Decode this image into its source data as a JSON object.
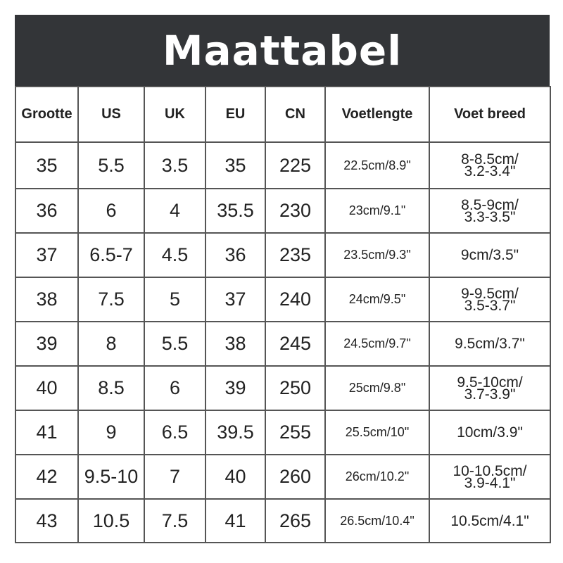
{
  "title": "Maattabel",
  "table": {
    "headers": [
      "Grootte",
      "US",
      "UK",
      "EU",
      "CN",
      "Voetlengte",
      "Voet breed"
    ],
    "rows": [
      {
        "size": "35",
        "us": "5.5",
        "uk": "3.5",
        "eu": "35",
        "cn": "225",
        "length": "22.5cm/8.9\"",
        "width_line1": "8-8.5cm/",
        "width_line2": "3.2-3.4\""
      },
      {
        "size": "36",
        "us": "6",
        "uk": "4",
        "eu": "35.5",
        "cn": "230",
        "length": "23cm/9.1\"",
        "width_line1": "8.5-9cm/",
        "width_line2": "3.3-3.5\""
      },
      {
        "size": "37",
        "us": "6.5-7",
        "uk": "4.5",
        "eu": "36",
        "cn": "235",
        "length": "23.5cm/9.3\"",
        "width_line1": "9cm/3.5\"",
        "width_line2": ""
      },
      {
        "size": "38",
        "us": "7.5",
        "uk": "5",
        "eu": "37",
        "cn": "240",
        "length": "24cm/9.5\"",
        "width_line1": "9-9.5cm/",
        "width_line2": "3.5-3.7\""
      },
      {
        "size": "39",
        "us": "8",
        "uk": "5.5",
        "eu": "38",
        "cn": "245",
        "length": "24.5cm/9.7\"",
        "width_line1": "9.5cm/3.7\"",
        "width_line2": ""
      },
      {
        "size": "40",
        "us": "8.5",
        "uk": "6",
        "eu": "39",
        "cn": "250",
        "length": "25cm/9.8\"",
        "width_line1": "9.5-10cm/",
        "width_line2": "3.7-3.9\""
      },
      {
        "size": "41",
        "us": "9",
        "uk": "6.5",
        "eu": "39.5",
        "cn": "255",
        "length": "25.5cm/10\"",
        "width_line1": "10cm/3.9\"",
        "width_line2": ""
      },
      {
        "size": "42",
        "us": "9.5-10",
        "uk": "7",
        "eu": "40",
        "cn": "260",
        "length": "26cm/10.2\"",
        "width_line1": "10-10.5cm/",
        "width_line2": "3.9-4.1\""
      },
      {
        "size": "43",
        "us": "10.5",
        "uk": "7.5",
        "eu": "41",
        "cn": "265",
        "length": "26.5cm/10.4\"",
        "width_line1": "10.5cm/4.1\"",
        "width_line2": ""
      }
    ]
  },
  "colors": {
    "header_bg": "#333538",
    "title_text": "#ffffff",
    "grid": "#555555",
    "text": "#222222"
  }
}
